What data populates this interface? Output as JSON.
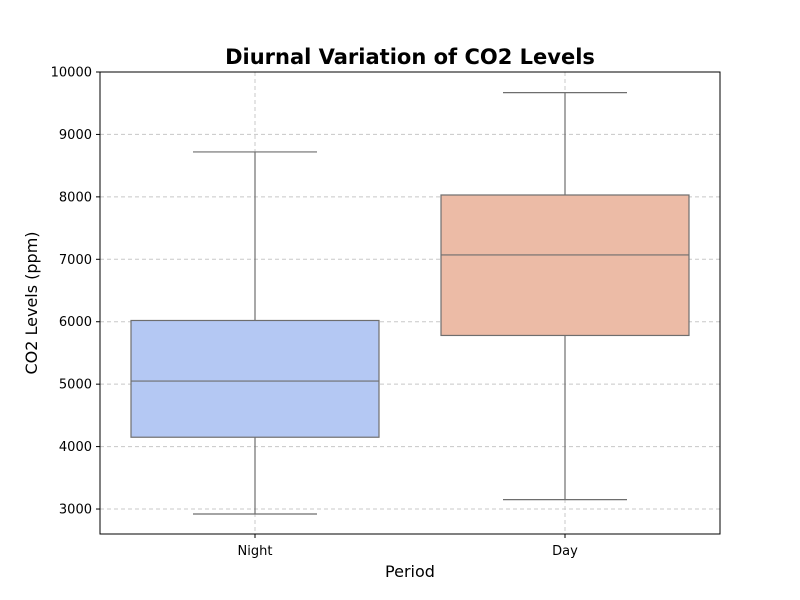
{
  "chart_data": {
    "type": "box",
    "title": "Diurnal Variation of CO2 Levels",
    "xlabel": "Period",
    "ylabel": "CO2 Levels (ppm)",
    "categories": [
      "Night",
      "Day"
    ],
    "ylim": [
      2600,
      10000
    ],
    "yticks": [
      3000,
      4000,
      5000,
      6000,
      7000,
      8000,
      9000,
      10000
    ],
    "grid": true,
    "boxes": [
      {
        "category": "Night",
        "whisker_low": 2920,
        "q1": 4150,
        "median": 5050,
        "q3": 6020,
        "whisker_high": 8720,
        "color": "#b4c8f3"
      },
      {
        "category": "Day",
        "whisker_low": 3150,
        "q1": 5780,
        "median": 7070,
        "q3": 8030,
        "whisker_high": 9670,
        "color": "#ecbba6"
      }
    ],
    "line_color": "#6e6e6e",
    "grid_color": "#c8c8c8"
  }
}
